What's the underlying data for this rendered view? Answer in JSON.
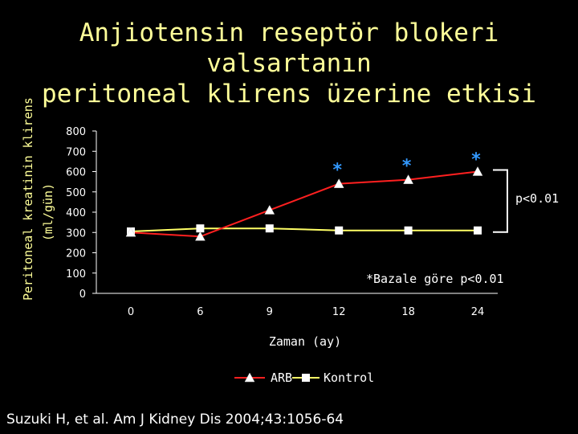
{
  "title_line1": "Anjiotensin reseptör blokeri valsartanın",
  "title_line2": "peritoneal klirens üzerine etkisi",
  "citation": "Suzuki H, et al. Am J Kidney Dis 2004;43:1056-64",
  "chart_data": {
    "type": "line",
    "x": [
      "0",
      "6",
      "9",
      "12",
      "18",
      "24"
    ],
    "series": [
      {
        "name": "ARB",
        "values": [
          300,
          280,
          410,
          540,
          560,
          600
        ],
        "color": "#ff2020",
        "marker": "triangle"
      },
      {
        "name": "Kontrol",
        "values": [
          305,
          320,
          320,
          310,
          310,
          310
        ],
        "color": "#ffff66",
        "marker": "square"
      }
    ],
    "xlabel": "Zaman (ay)",
    "ylabel": "Peritoneal kreatinin klirens",
    "ylabel_unit": "(ml/gün)",
    "ylim": [
      0,
      800
    ],
    "yticks": [
      "0",
      "100",
      "200",
      "300",
      "400",
      "500",
      "600",
      "700",
      "800"
    ],
    "star_annotations": [
      "*",
      "*",
      "*"
    ],
    "annotations": [
      "*Bazale göre p<0.01",
      "p<0.01"
    ],
    "legend_position": "bottom"
  }
}
